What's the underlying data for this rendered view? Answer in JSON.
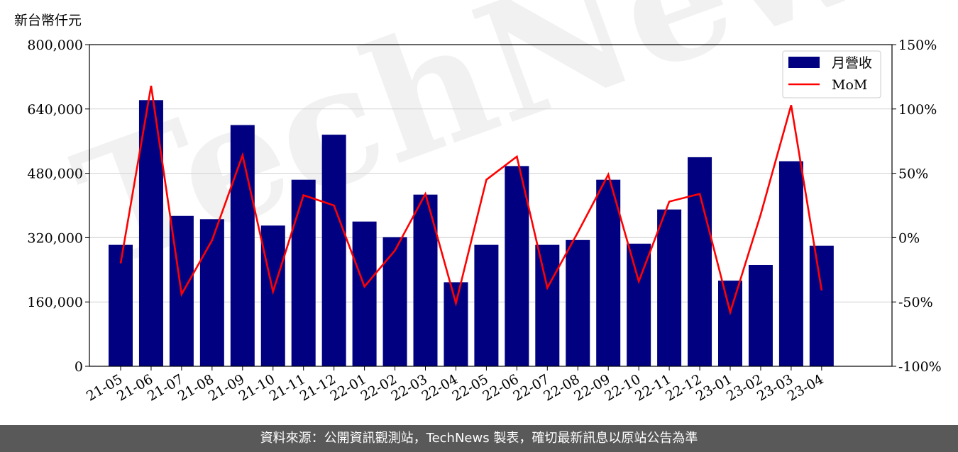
{
  "unit_label": "新台幣仟元",
  "footer": "資料來源：公開資訊觀測站，TechNews 製表，確切最新訊息以原站公告為準",
  "watermark": "TechNews",
  "colors": {
    "bar": "#000080",
    "line": "#ff0000",
    "grid": "#d3d3d3",
    "footer_bg": "#595959"
  },
  "chart_data": {
    "type": "bar+line",
    "categories": [
      "21-05",
      "21-06",
      "21-07",
      "21-08",
      "21-09",
      "21-10",
      "21-11",
      "21-12",
      "22-01",
      "22-02",
      "22-03",
      "22-04",
      "22-05",
      "22-06",
      "22-07",
      "22-08",
      "22-09",
      "22-10",
      "22-11",
      "22-12",
      "23-01",
      "23-02",
      "23-03",
      "23-04"
    ],
    "series": [
      {
        "name": "月營收",
        "type": "bar",
        "axis": "left",
        "values": [
          302000,
          662000,
          374000,
          366000,
          600000,
          350000,
          464000,
          576000,
          360000,
          321000,
          427000,
          209000,
          302000,
          498000,
          302000,
          314000,
          464000,
          305000,
          390000,
          520000,
          213000,
          252000,
          510000,
          300000
        ]
      },
      {
        "name": "MoM",
        "type": "line",
        "axis": "right",
        "values": [
          -20,
          118,
          -44,
          -2,
          64,
          -42,
          33,
          25,
          -38,
          -10,
          34,
          -51,
          45,
          63,
          -39,
          4,
          49,
          -34,
          28,
          34,
          -58,
          18,
          103,
          -41
        ]
      }
    ],
    "y_left": {
      "min": 0,
      "max": 800000,
      "ticks": [
        "0",
        "160,000",
        "320,000",
        "480,000",
        "640,000",
        "800,000"
      ]
    },
    "y_right": {
      "min": -100,
      "max": 150,
      "ticks": [
        "-100%",
        "-50%",
        "0%",
        "50%",
        "100%",
        "150%"
      ]
    },
    "grid": true,
    "legend_position": "top-right"
  }
}
